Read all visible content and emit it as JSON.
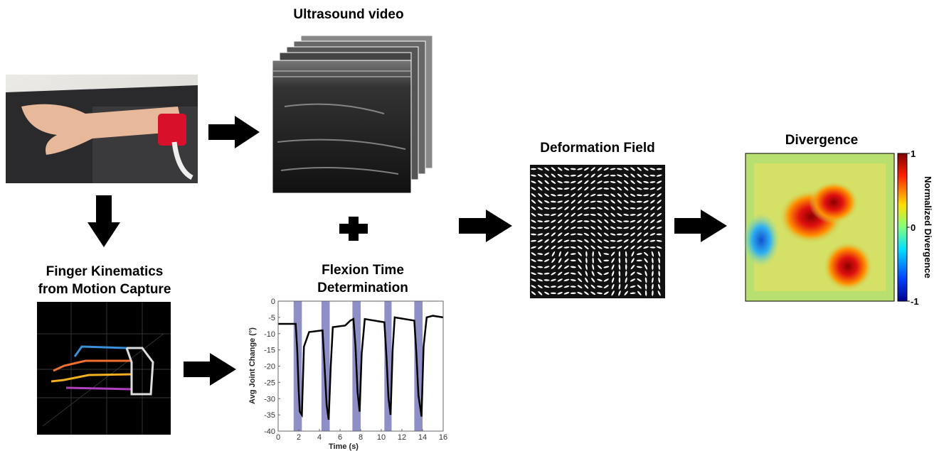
{
  "ultrasound": {
    "title": "Ultrasound video"
  },
  "finger_kinematics": {
    "title_lines": [
      "Finger Kinematics",
      "from Motion Capture"
    ]
  },
  "flexion_time": {
    "type": "line",
    "title_lines": [
      "Flexion Time",
      "Determination"
    ],
    "x_label": "Time (s)",
    "y_label": "Avg Joint Change (°)",
    "xlim": [
      0,
      16
    ],
    "ylim": [
      -40,
      0
    ],
    "xticks": [
      0,
      2,
      4,
      6,
      8,
      10,
      12,
      14,
      16
    ],
    "yticks": [
      0,
      -5,
      -10,
      -15,
      -20,
      -25,
      -30,
      -35,
      -40
    ],
    "interval_color": "#8f8fc7",
    "intervals": [
      [
        1.5,
        2.3
      ],
      [
        4.2,
        5.0
      ],
      [
        7.2,
        8.0
      ],
      [
        10.3,
        11.0
      ],
      [
        13.2,
        14.0
      ]
    ],
    "series": [
      {
        "color": "#000000",
        "x": [
          0,
          1.7,
          1.85,
          2.0,
          2.1,
          2.3,
          2.5,
          3.0,
          4.3,
          4.5,
          4.7,
          4.9,
          5.1,
          5.3,
          6.5,
          7.0,
          7.3,
          7.5,
          7.7,
          7.9,
          8.1,
          8.4,
          10.3,
          10.5,
          10.7,
          10.9,
          11.1,
          11.3,
          13.2,
          13.4,
          13.6,
          13.9,
          14.1,
          14.4,
          15.0,
          16.0
        ],
        "values": [
          -7,
          -7,
          -15,
          -28,
          -34,
          -35,
          -14,
          -9.5,
          -9,
          -20,
          -32,
          -36.5,
          -20,
          -8,
          -7.5,
          -6,
          -5.5,
          -14,
          -28,
          -34,
          -16,
          -5.5,
          -6.5,
          -17,
          -30,
          -35,
          -15,
          -5,
          -6,
          -16,
          -29,
          -35.5,
          -14,
          -5,
          -4.5,
          -5
        ]
      }
    ]
  },
  "deformation_field": {
    "title": "Deformation Field"
  },
  "divergence": {
    "title": "Divergence",
    "colorbar_label": "Normalized Divergence",
    "clim": [
      -1,
      1
    ],
    "ticks": [
      1,
      0,
      -1
    ]
  }
}
